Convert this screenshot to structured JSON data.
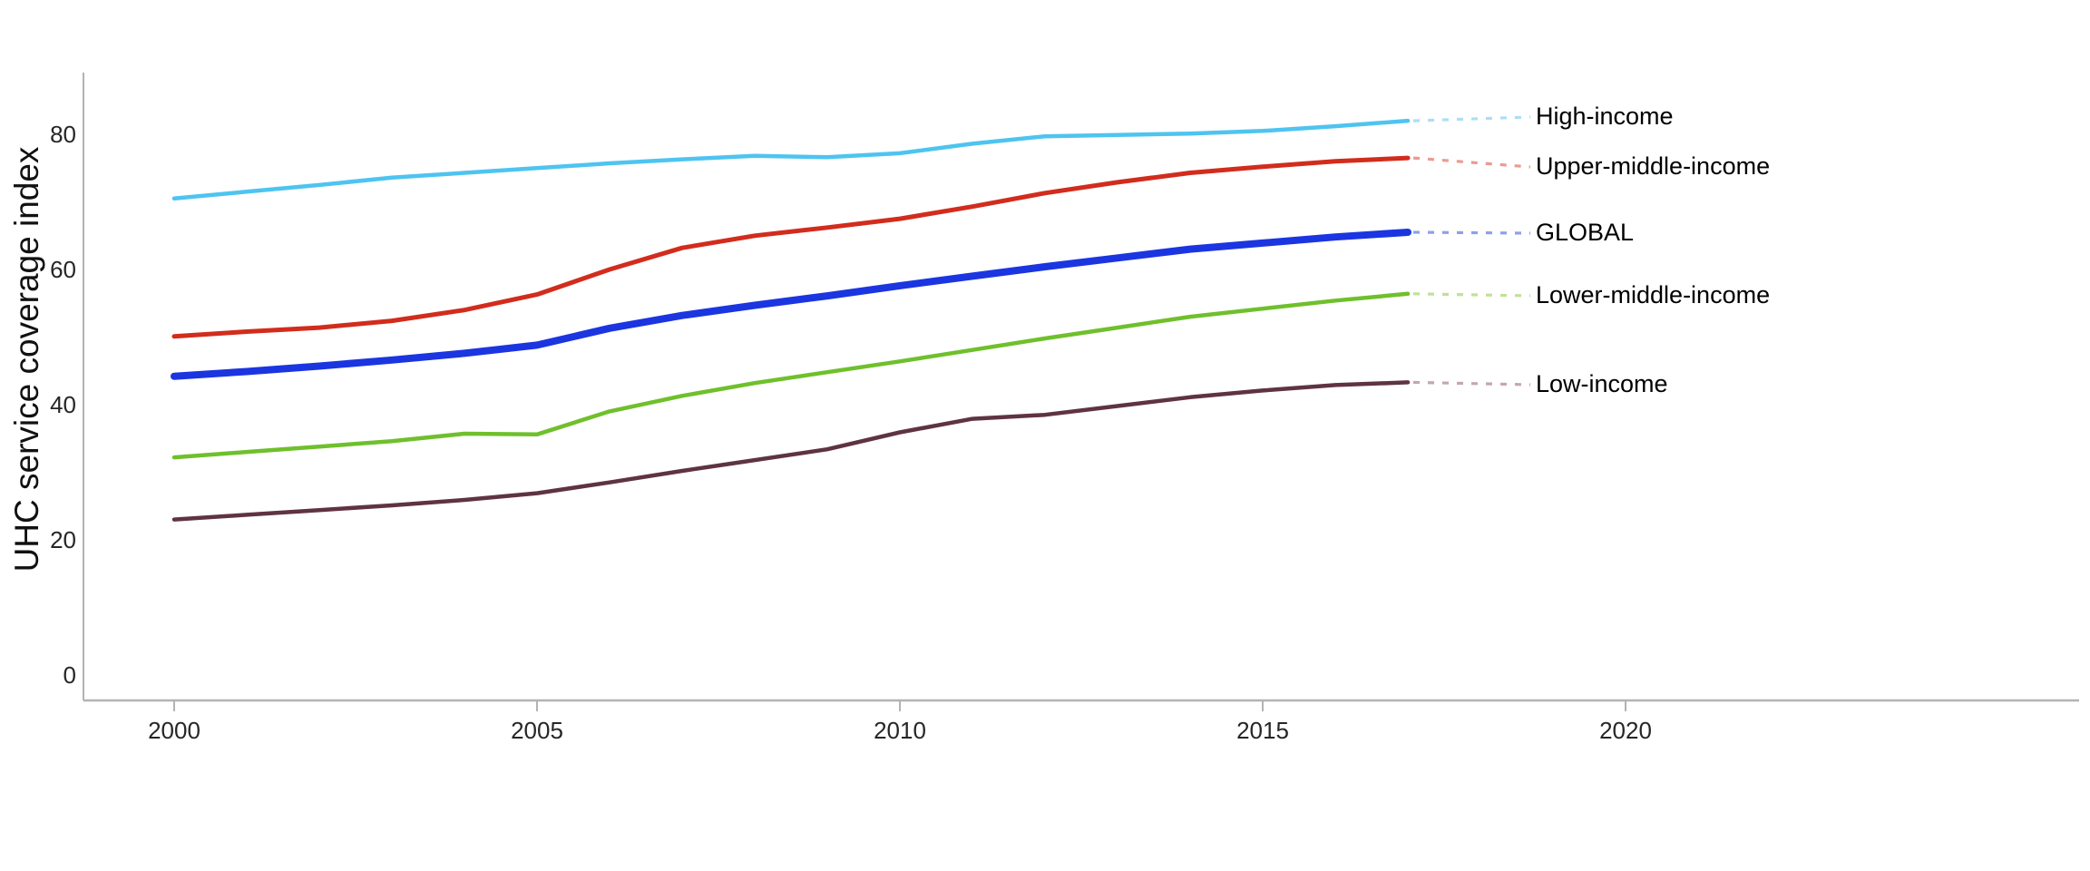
{
  "chart_data": {
    "type": "line",
    "title": "",
    "xlabel": "",
    "ylabel": "UHC service coverage index",
    "x": [
      2000,
      2001,
      2002,
      2003,
      2004,
      2005,
      2006,
      2007,
      2008,
      2009,
      2010,
      2011,
      2012,
      2013,
      2014,
      2015,
      2016,
      2017
    ],
    "x_ticks": [
      "2000",
      "2005",
      "2010",
      "2015",
      "2020"
    ],
    "x_tick_years": [
      2000,
      2005,
      2010,
      2015,
      2020
    ],
    "y_ticks": [
      "80",
      "60",
      "40",
      "20",
      "0"
    ],
    "y_tick_values": [
      80,
      60,
      40,
      20,
      0
    ],
    "ylim": [
      0,
      90
    ],
    "xlim": [
      2000,
      2026
    ],
    "grid": false,
    "legend_position": "end-of-line-labels-right",
    "background_color": "#ffffff",
    "axis_color": "#b3b3b3",
    "series": [
      {
        "name": "High-income",
        "color": "#4ec4f0",
        "leader_color": "#abdef8",
        "width": 4.5,
        "values": [
          70.5,
          71.5,
          72.5,
          73.6,
          74.3,
          75.0,
          75.7,
          76.3,
          76.8,
          76.6,
          77.2,
          78.6,
          79.7,
          79.9,
          80.1,
          80.5,
          81.2,
          82.0
        ]
      },
      {
        "name": "Upper-middle-income",
        "color": "#d22c1d",
        "leader_color": "#ec9a91",
        "width": 5,
        "values": [
          50.1,
          50.8,
          51.4,
          52.4,
          54.0,
          56.3,
          60.0,
          63.2,
          65.0,
          66.2,
          67.5,
          69.3,
          71.3,
          72.9,
          74.3,
          75.2,
          76.0,
          76.5
        ]
      },
      {
        "name": "GLOBAL",
        "color": "#1b35e1",
        "leader_color": "#8f9fec",
        "width": 8,
        "values": [
          44.2,
          44.9,
          45.7,
          46.6,
          47.6,
          48.8,
          51.3,
          53.2,
          54.7,
          56.1,
          57.6,
          59.0,
          60.4,
          61.7,
          63.0,
          63.9,
          64.8,
          65.5
        ]
      },
      {
        "name": "Lower-middle-income",
        "color": "#6fc02c",
        "leader_color": "#c0e197",
        "width": 4.5,
        "values": [
          32.2,
          33.0,
          33.8,
          34.6,
          35.7,
          35.6,
          39.0,
          41.3,
          43.2,
          44.8,
          46.4,
          48.1,
          49.8,
          51.4,
          53.0,
          54.2,
          55.4,
          56.4
        ]
      },
      {
        "name": "Low-income",
        "color": "#5f3342",
        "leader_color": "#c5a7ae",
        "width": 4.5,
        "values": [
          23.0,
          23.7,
          24.4,
          25.1,
          25.9,
          26.9,
          28.5,
          30.2,
          31.8,
          33.4,
          35.9,
          37.9,
          38.5,
          39.8,
          41.1,
          42.1,
          42.9,
          43.3
        ]
      }
    ]
  }
}
